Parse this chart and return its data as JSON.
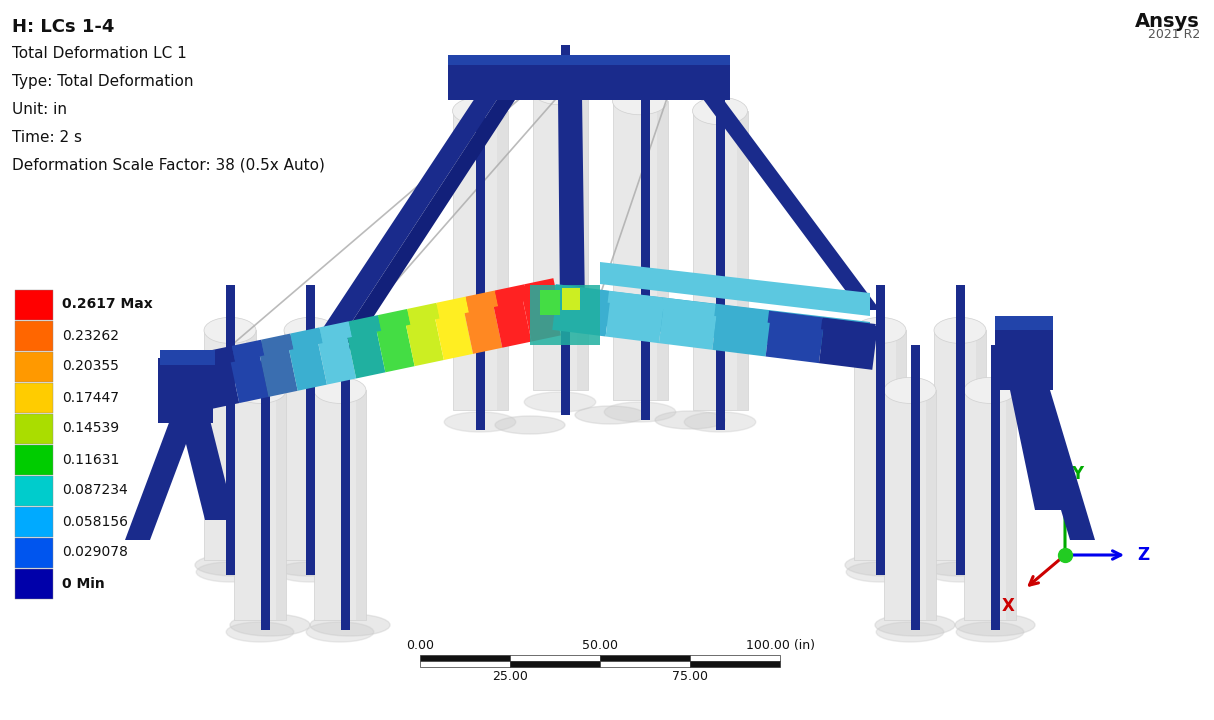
{
  "title_bold": "H: LCs 1-4",
  "info_lines": [
    "Total Deformation LC 1",
    "Type: Total Deformation",
    "Unit: in",
    "Time: 2 s",
    "Deformation Scale Factor: 38 (0.5x Auto)"
  ],
  "legend_values": [
    "0.2617 Max",
    "0.23262",
    "0.20355",
    "0.17447",
    "0.14539",
    "0.11631",
    "0.087234",
    "0.058156",
    "0.029078",
    "0 Min"
  ],
  "legend_colors": [
    "#FF0000",
    "#FF6600",
    "#FF9900",
    "#FFCC00",
    "#AADD00",
    "#00CC00",
    "#00CCCC",
    "#00AAFF",
    "#0055EE",
    "#0000AA"
  ],
  "bold_indices": [
    0,
    9
  ],
  "ansys_text": "Ansys",
  "ansys_version": "2021 R2",
  "scale_labels_top": [
    "0.00",
    "50.00",
    "100.00 (in)"
  ],
  "scale_labels_bot": [
    "25.00",
    "75.00"
  ],
  "background_color": "#FFFFFF",
  "text_color": "#111111",
  "axis_colors": {
    "X": "#CC0000",
    "Y": "#00AA00",
    "Z": "#0000EE"
  },
  "dark_blue": "#1A2B8C",
  "navy": "#12207A",
  "med_blue": "#2244AA",
  "steel_blue": "#3A6EB0",
  "cyan_beam": "#3BAFD0",
  "light_cyan": "#5CC8E0",
  "teal": "#20B0A0",
  "green": "#44DD44",
  "yellow_green": "#CCEE22",
  "yellow": "#FFEE22",
  "orange": "#FF8822",
  "red": "#FF2222",
  "pile_color": "#E8E8E8",
  "pile_shadow": "#D0D0D0",
  "pile_top": "#F0F0F0",
  "shadow_gray": "#C8C8C8"
}
